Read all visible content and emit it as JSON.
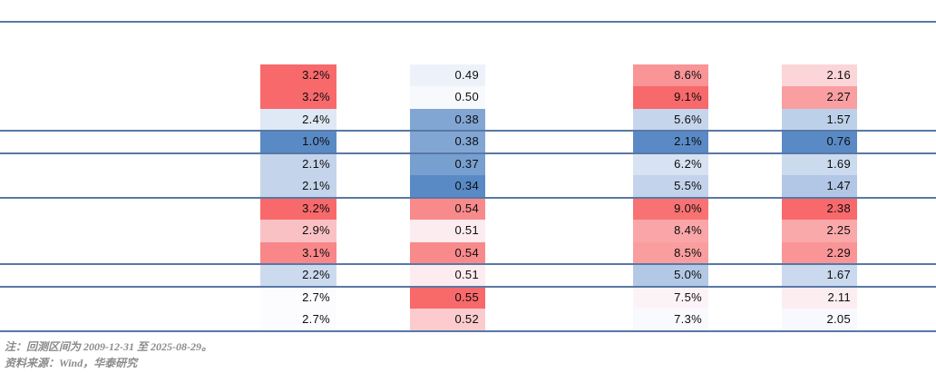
{
  "figure": {
    "kind": "conditional-format heatmap table",
    "background": "#ffffff"
  },
  "colors": {
    "rule_line": "#5878a5",
    "cell_text": "#0d0d0d",
    "note_text": "#8b8b8b"
  },
  "chart_data": {
    "type": "heatmap",
    "title": "",
    "legend": "none",
    "grid": "off",
    "color_scale": {
      "min_color": "#5A8AC6",
      "mid_color": "#FCFCFF",
      "max_color": "#F8696B",
      "midpoint": "median",
      "note": "Excel 3-color scale applied independently per column"
    },
    "columns": [
      {
        "name": "column-1",
        "format": "percent-1dp",
        "values": [
          3.2,
          3.2,
          2.4,
          1.0,
          2.1,
          2.1,
          3.2,
          2.9,
          3.1,
          2.2,
          2.7,
          2.7
        ]
      },
      {
        "name": "column-2",
        "format": "number-2dp",
        "values": [
          0.49,
          0.5,
          0.38,
          0.38,
          0.37,
          0.34,
          0.54,
          0.51,
          0.54,
          0.51,
          0.55,
          0.52
        ]
      },
      {
        "name": "column-3",
        "format": "percent-1dp",
        "values": [
          8.6,
          9.1,
          5.6,
          2.1,
          6.2,
          5.5,
          9.0,
          8.4,
          8.5,
          5.0,
          7.5,
          7.3
        ]
      },
      {
        "name": "column-4",
        "format": "number-2dp",
        "values": [
          2.16,
          2.27,
          1.57,
          0.76,
          1.69,
          1.47,
          2.38,
          2.25,
          2.29,
          1.67,
          2.11,
          2.05
        ]
      }
    ],
    "row_count": 12,
    "group_separators_after_row": [
      3,
      4,
      6,
      9,
      10,
      12
    ]
  },
  "footer": {
    "note": "注：回测区间为 2009-12-31 至 2025-08-29。",
    "source": "资料来源：Wind，华泰研究"
  }
}
